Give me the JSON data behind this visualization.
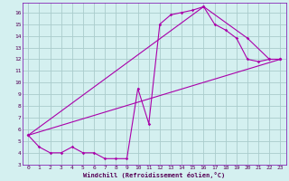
{
  "xlabel": "Windchill (Refroidissement éolien,°C)",
  "bg_color": "#d4f0f0",
  "grid_color": "#aacccc",
  "line_color": "#aa00aa",
  "spine_color": "#7700aa",
  "tick_color": "#550055",
  "xlim": [
    -0.5,
    23.5
  ],
  "ylim": [
    3,
    16.8
  ],
  "xticks": [
    0,
    1,
    2,
    3,
    4,
    5,
    6,
    7,
    8,
    9,
    10,
    11,
    12,
    13,
    14,
    15,
    16,
    17,
    18,
    19,
    20,
    21,
    22,
    23
  ],
  "yticks": [
    3,
    4,
    5,
    6,
    7,
    8,
    9,
    10,
    11,
    12,
    13,
    14,
    15,
    16
  ],
  "line1_x": [
    0,
    1,
    2,
    3,
    4,
    5,
    6,
    7,
    8,
    9,
    10,
    11,
    12,
    13,
    14,
    15,
    16,
    17,
    18,
    19,
    20,
    21,
    22,
    23
  ],
  "line1_y": [
    5.5,
    4.5,
    4.0,
    4.0,
    4.5,
    4.0,
    4.0,
    3.5,
    3.5,
    3.5,
    9.5,
    6.5,
    15.0,
    15.8,
    16.0,
    16.2,
    16.5,
    15.0,
    14.5,
    13.8,
    12.0,
    11.8,
    12.0,
    12.0
  ],
  "line2_x": [
    0,
    23
  ],
  "line2_y": [
    5.5,
    12.0
  ],
  "line3_x": [
    0,
    16,
    20,
    22,
    23
  ],
  "line3_y": [
    5.5,
    16.5,
    13.8,
    12.0,
    12.0
  ]
}
